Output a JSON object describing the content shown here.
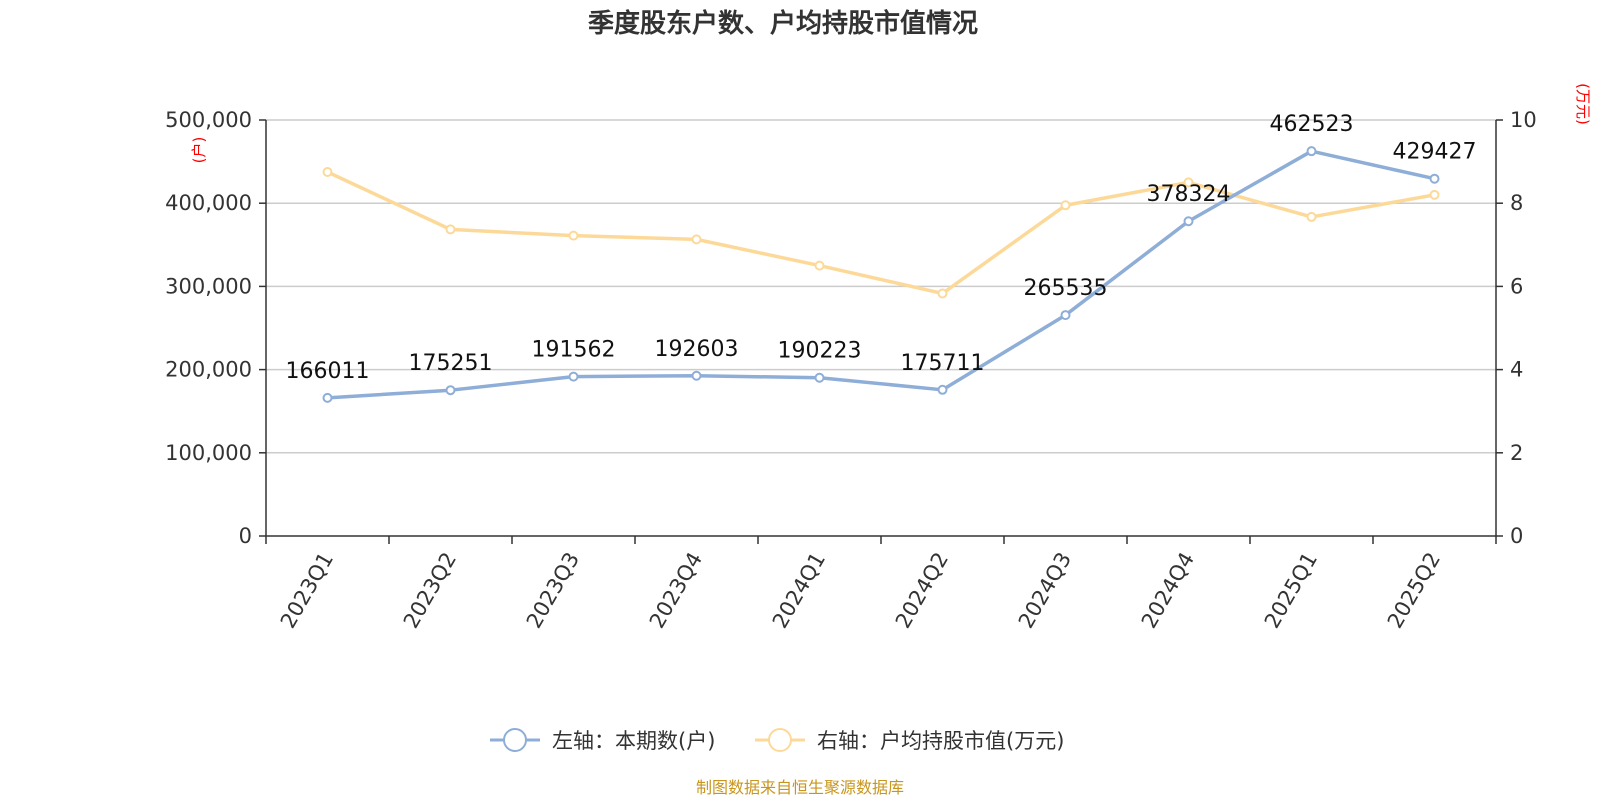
{
  "colors": {
    "series_left": "#8eaed8",
    "series_right": "#fdd999",
    "grid": "#cccccc",
    "axis": "#333333",
    "unit_text": "#ff0000",
    "source_text": "#c8961e"
  },
  "chart_data": {
    "type": "line",
    "title": "季度股东户数、户均持股市值情况",
    "categories": [
      "2023Q1",
      "2023Q2",
      "2023Q3",
      "2023Q4",
      "2024Q1",
      "2024Q2",
      "2024Q3",
      "2024Q4",
      "2025Q1",
      "2025Q2"
    ],
    "y_left": {
      "unit_label": "(户)",
      "ylim": [
        0,
        500000
      ],
      "ticks": [
        0,
        100000,
        200000,
        300000,
        400000,
        500000
      ],
      "tick_labels": [
        "0",
        "100,000",
        "200,000",
        "300,000",
        "400,000",
        "500,000"
      ]
    },
    "y_right": {
      "unit_label": "(万元)",
      "ylim": [
        0,
        10
      ],
      "ticks": [
        0,
        2,
        4,
        6,
        8,
        10
      ],
      "tick_labels": [
        "0",
        "2",
        "4",
        "6",
        "8",
        "10"
      ]
    },
    "series": [
      {
        "name": "左轴：本期数(户)",
        "axis": "left",
        "values": [
          166011,
          175251,
          191562,
          192603,
          190223,
          175711,
          265535,
          378324,
          462523,
          429427
        ],
        "data_labels": [
          "166011",
          "175251",
          "191562",
          "192603",
          "190223",
          "175711",
          "265535",
          "378324",
          "462523",
          "429427"
        ]
      },
      {
        "name": "右轴：户均持股市值(万元)",
        "axis": "right",
        "values": [
          8.75,
          7.37,
          7.22,
          7.13,
          6.5,
          5.83,
          7.95,
          8.5,
          7.67,
          8.2
        ]
      }
    ],
    "grid": true,
    "legend_position": "bottom-center"
  },
  "source_note": "制图数据来自恒生聚源数据库"
}
